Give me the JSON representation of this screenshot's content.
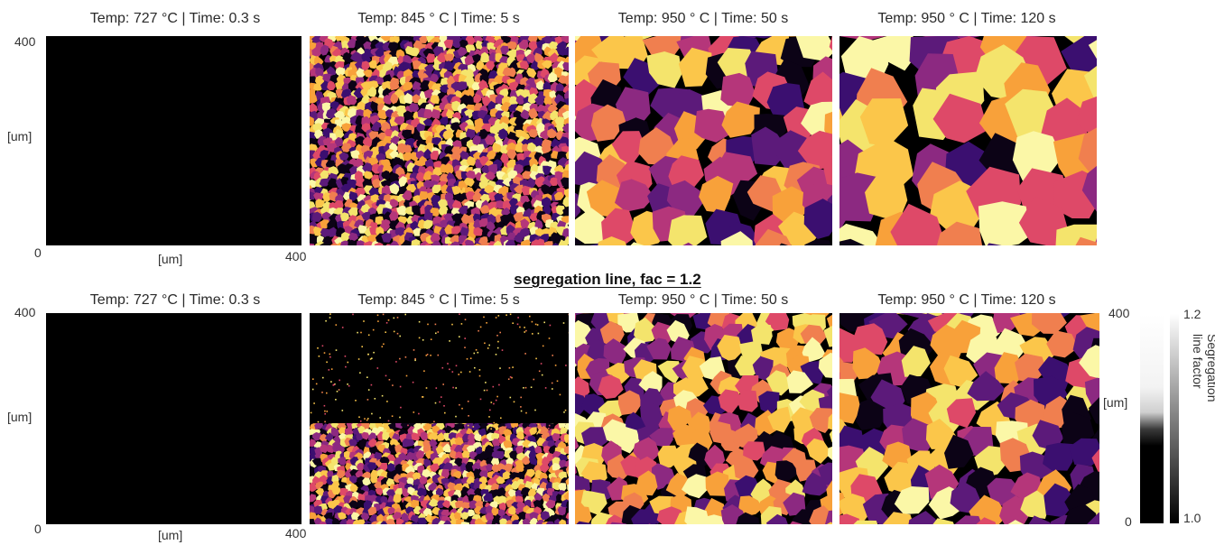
{
  "rows": [
    {
      "panels": [
        {
          "title": "Temp: 727 °C | Time: 0.3 s",
          "state": "empty"
        },
        {
          "title": "Temp: 845 ° C | Time: 5 s",
          "state": "fine"
        },
        {
          "title": "Temp: 950 ° C | Time: 50 s",
          "state": "medium"
        },
        {
          "title": "Temp: 950 ° C | Time: 120 s",
          "state": "coarse"
        }
      ],
      "y_tick_top": "400",
      "y_tick_bottom": "0",
      "y_label": "[um]",
      "x_label": "[um]",
      "x_tick_right": "400"
    },
    {
      "panels": [
        {
          "title": "Temp: 727 °C | Time: 0.3 s",
          "state": "empty"
        },
        {
          "title": "Temp: 845 ° C | Time: 5 s",
          "state": "segregated"
        },
        {
          "title": "Temp: 950 ° C | Time: 50 s",
          "state": "medium-fine"
        },
        {
          "title": "Temp: 950 ° C | Time: 120 s",
          "state": "medium"
        }
      ],
      "y_tick_top": "400",
      "y_tick_bottom": "0",
      "y_label": "[um]",
      "x_label": "[um]",
      "x_tick_right": "400"
    }
  ],
  "section_title": "segregation line, fac = 1.2",
  "colorbar": {
    "map_label": "[um]",
    "map_tick_top": "400",
    "map_tick_bottom": "0",
    "factor_label": "Segregation line factor",
    "factor_tick_top": "1.2",
    "factor_tick_bottom": "1.0"
  },
  "palette": [
    "#0c0316",
    "#3b0f70",
    "#5c1a7a",
    "#8c2981",
    "#b5367a",
    "#de4968",
    "#f07f4f",
    "#f8a13a",
    "#fbc64a",
    "#f4e46c",
    "#fbf7a7"
  ]
}
